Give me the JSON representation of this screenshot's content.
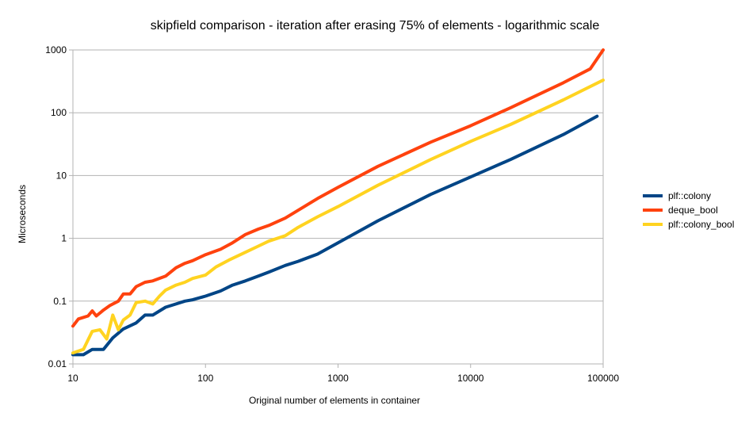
{
  "chart_data": {
    "type": "line",
    "title": "skipfield comparison - iteration after erasing 75% of elements - logarithmic scale",
    "xlabel": "Original number of elements in container",
    "ylabel": "Microseconds",
    "x_scale": "log",
    "y_scale": "log",
    "xlim": [
      10,
      100000
    ],
    "ylim": [
      0.01,
      1000
    ],
    "x_ticks": [
      "10",
      "100",
      "1000",
      "10000",
      "100000"
    ],
    "y_ticks": [
      "0.01",
      "0.1",
      "1",
      "10",
      "100",
      "1000"
    ],
    "grid": "horizontal major gridlines",
    "legend_position": "right",
    "series": [
      {
        "name": "plf::colony",
        "color": "#004586",
        "points": [
          [
            10,
            0.014
          ],
          [
            12,
            0.014
          ],
          [
            14,
            0.017
          ],
          [
            17,
            0.017
          ],
          [
            20,
            0.026
          ],
          [
            24,
            0.036
          ],
          [
            30,
            0.045
          ],
          [
            35,
            0.06
          ],
          [
            40,
            0.06
          ],
          [
            50,
            0.08
          ],
          [
            60,
            0.09
          ],
          [
            70,
            0.1
          ],
          [
            80,
            0.105
          ],
          [
            100,
            0.12
          ],
          [
            130,
            0.145
          ],
          [
            160,
            0.18
          ],
          [
            200,
            0.21
          ],
          [
            250,
            0.25
          ],
          [
            300,
            0.29
          ],
          [
            400,
            0.37
          ],
          [
            500,
            0.43
          ],
          [
            700,
            0.56
          ],
          [
            1000,
            0.85
          ],
          [
            2000,
            1.9
          ],
          [
            5000,
            5.0
          ],
          [
            10000,
            9.5
          ],
          [
            20000,
            18
          ],
          [
            50000,
            45
          ],
          [
            90000,
            88
          ]
        ]
      },
      {
        "name": "deque_bool",
        "color": "#ff420e",
        "points": [
          [
            10,
            0.04
          ],
          [
            11,
            0.052
          ],
          [
            13,
            0.058
          ],
          [
            14,
            0.07
          ],
          [
            15,
            0.058
          ],
          [
            17,
            0.072
          ],
          [
            19,
            0.085
          ],
          [
            22,
            0.1
          ],
          [
            24,
            0.13
          ],
          [
            27,
            0.13
          ],
          [
            30,
            0.17
          ],
          [
            35,
            0.2
          ],
          [
            40,
            0.21
          ],
          [
            50,
            0.25
          ],
          [
            60,
            0.34
          ],
          [
            70,
            0.4
          ],
          [
            80,
            0.44
          ],
          [
            100,
            0.55
          ],
          [
            130,
            0.67
          ],
          [
            160,
            0.85
          ],
          [
            200,
            1.15
          ],
          [
            250,
            1.4
          ],
          [
            300,
            1.6
          ],
          [
            400,
            2.1
          ],
          [
            500,
            2.8
          ],
          [
            700,
            4.3
          ],
          [
            1000,
            6.5
          ],
          [
            2000,
            14
          ],
          [
            5000,
            34
          ],
          [
            10000,
            62
          ],
          [
            20000,
            120
          ],
          [
            50000,
            300
          ],
          [
            80000,
            500
          ],
          [
            100000,
            1000
          ]
        ]
      },
      {
        "name": "plf::colony_bool",
        "color": "#ffd320",
        "points": [
          [
            10,
            0.015
          ],
          [
            12,
            0.017
          ],
          [
            14,
            0.033
          ],
          [
            16,
            0.035
          ],
          [
            18,
            0.025
          ],
          [
            20,
            0.06
          ],
          [
            22,
            0.035
          ],
          [
            24,
            0.05
          ],
          [
            27,
            0.06
          ],
          [
            30,
            0.095
          ],
          [
            35,
            0.1
          ],
          [
            40,
            0.09
          ],
          [
            45,
            0.12
          ],
          [
            50,
            0.15
          ],
          [
            60,
            0.18
          ],
          [
            70,
            0.2
          ],
          [
            80,
            0.23
          ],
          [
            100,
            0.26
          ],
          [
            120,
            0.35
          ],
          [
            150,
            0.45
          ],
          [
            200,
            0.6
          ],
          [
            250,
            0.75
          ],
          [
            300,
            0.9
          ],
          [
            400,
            1.1
          ],
          [
            500,
            1.5
          ],
          [
            700,
            2.2
          ],
          [
            1000,
            3.2
          ],
          [
            2000,
            7
          ],
          [
            5000,
            18
          ],
          [
            10000,
            35
          ],
          [
            20000,
            65
          ],
          [
            50000,
            160
          ],
          [
            100000,
            330
          ]
        ]
      }
    ]
  }
}
